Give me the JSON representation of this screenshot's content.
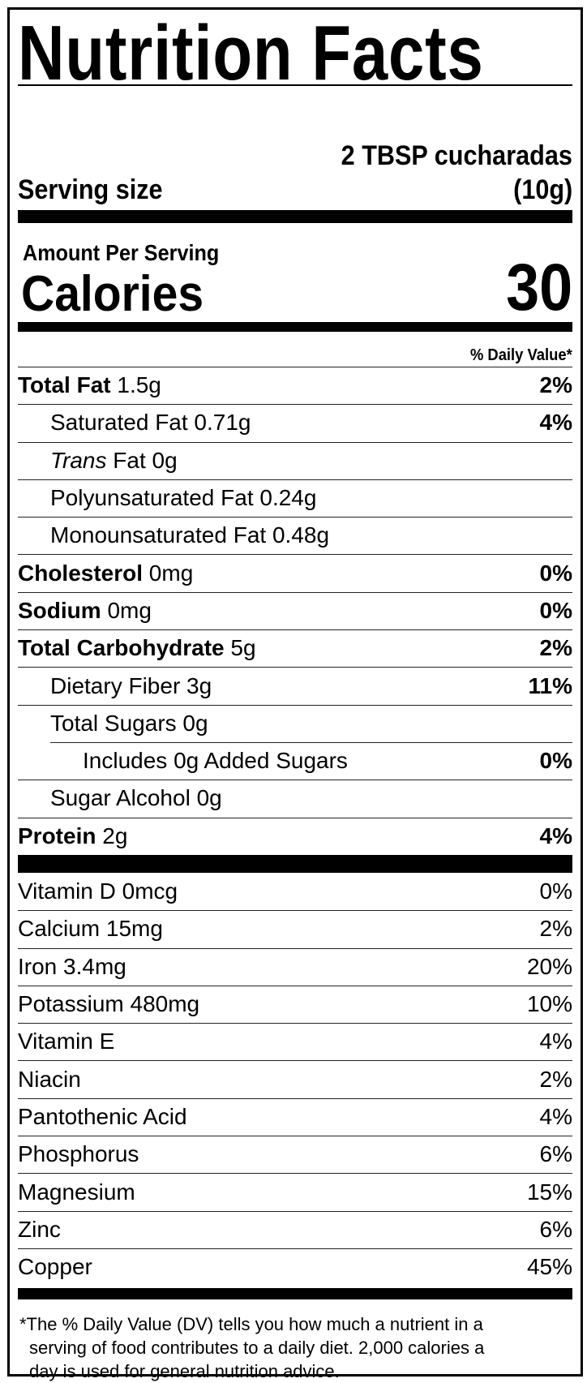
{
  "title": "Nutrition Facts",
  "serving": {
    "amount_line1": "2 TBSP cucharadas",
    "label": "Serving size",
    "amount_line2": "(10g)"
  },
  "calories": {
    "amount_per_serving": "Amount Per Serving",
    "label": "Calories",
    "value": "30"
  },
  "dv_header": "% Daily Value*",
  "nutrients": [
    {
      "name": "Total Fat",
      "amount": "1.5g",
      "dv": "2%",
      "bold": true,
      "indent": 0
    },
    {
      "name": "Saturated Fat",
      "amount": "0.71g",
      "dv": "4%",
      "bold": false,
      "indent": 1
    },
    {
      "name": "Trans",
      "name_suffix": "Fat",
      "amount": "0g",
      "dv": "",
      "bold": false,
      "indent": 1,
      "italic": true
    },
    {
      "name": "Polyunsaturated Fat",
      "amount": "0.24g",
      "dv": "",
      "bold": false,
      "indent": 1
    },
    {
      "name": "Monounsaturated Fat",
      "amount": "0.48g",
      "dv": "",
      "bold": false,
      "indent": 1
    },
    {
      "name": "Cholesterol",
      "amount": "0mg",
      "dv": "0%",
      "bold": true,
      "indent": 0
    },
    {
      "name": "Sodium",
      "amount": "0mg",
      "dv": "0%",
      "bold": true,
      "indent": 0
    },
    {
      "name": "Total Carbohydrate",
      "amount": "5g",
      "dv": "2%",
      "bold": true,
      "indent": 0
    },
    {
      "name": "Dietary Fiber",
      "amount": "3g",
      "dv": "11%",
      "bold": false,
      "indent": 1
    },
    {
      "name": "Total Sugars",
      "amount": "0g",
      "dv": "",
      "bold": false,
      "indent": 1
    },
    {
      "name": "Includes 0g Added Sugars",
      "amount": "",
      "dv": "0%",
      "bold": false,
      "indent": 2
    },
    {
      "name": "Sugar Alcohol",
      "amount": "0g",
      "dv": "",
      "bold": false,
      "indent": 1
    },
    {
      "name": "Protein",
      "amount": "2g",
      "dv": "4%",
      "bold": true,
      "indent": 0
    }
  ],
  "vitamins": [
    {
      "name": "Vitamin D 0mcg",
      "dv": "0%"
    },
    {
      "name": "Calcium 15mg",
      "dv": "2%"
    },
    {
      "name": "Iron 3.4mg",
      "dv": "20%"
    },
    {
      "name": "Potassium 480mg",
      "dv": "10%"
    },
    {
      "name": "Vitamin E",
      "dv": "4%"
    },
    {
      "name": "Niacin",
      "dv": "2%"
    },
    {
      "name": "Pantothenic Acid",
      "dv": "4%"
    },
    {
      "name": "Phosphorus",
      "dv": "6%"
    },
    {
      "name": "Magnesium",
      "dv": "15%"
    },
    {
      "name": "Zinc",
      "dv": "6%"
    },
    {
      "name": "Copper",
      "dv": "45%"
    }
  ],
  "footnote": {
    "line1": "*The % Daily Value (DV) tells you how much a nutrient in a",
    "line2": "serving of food contributes to a daily diet. 2,000 calories a",
    "line3": "day is used for general nutrition advice."
  }
}
